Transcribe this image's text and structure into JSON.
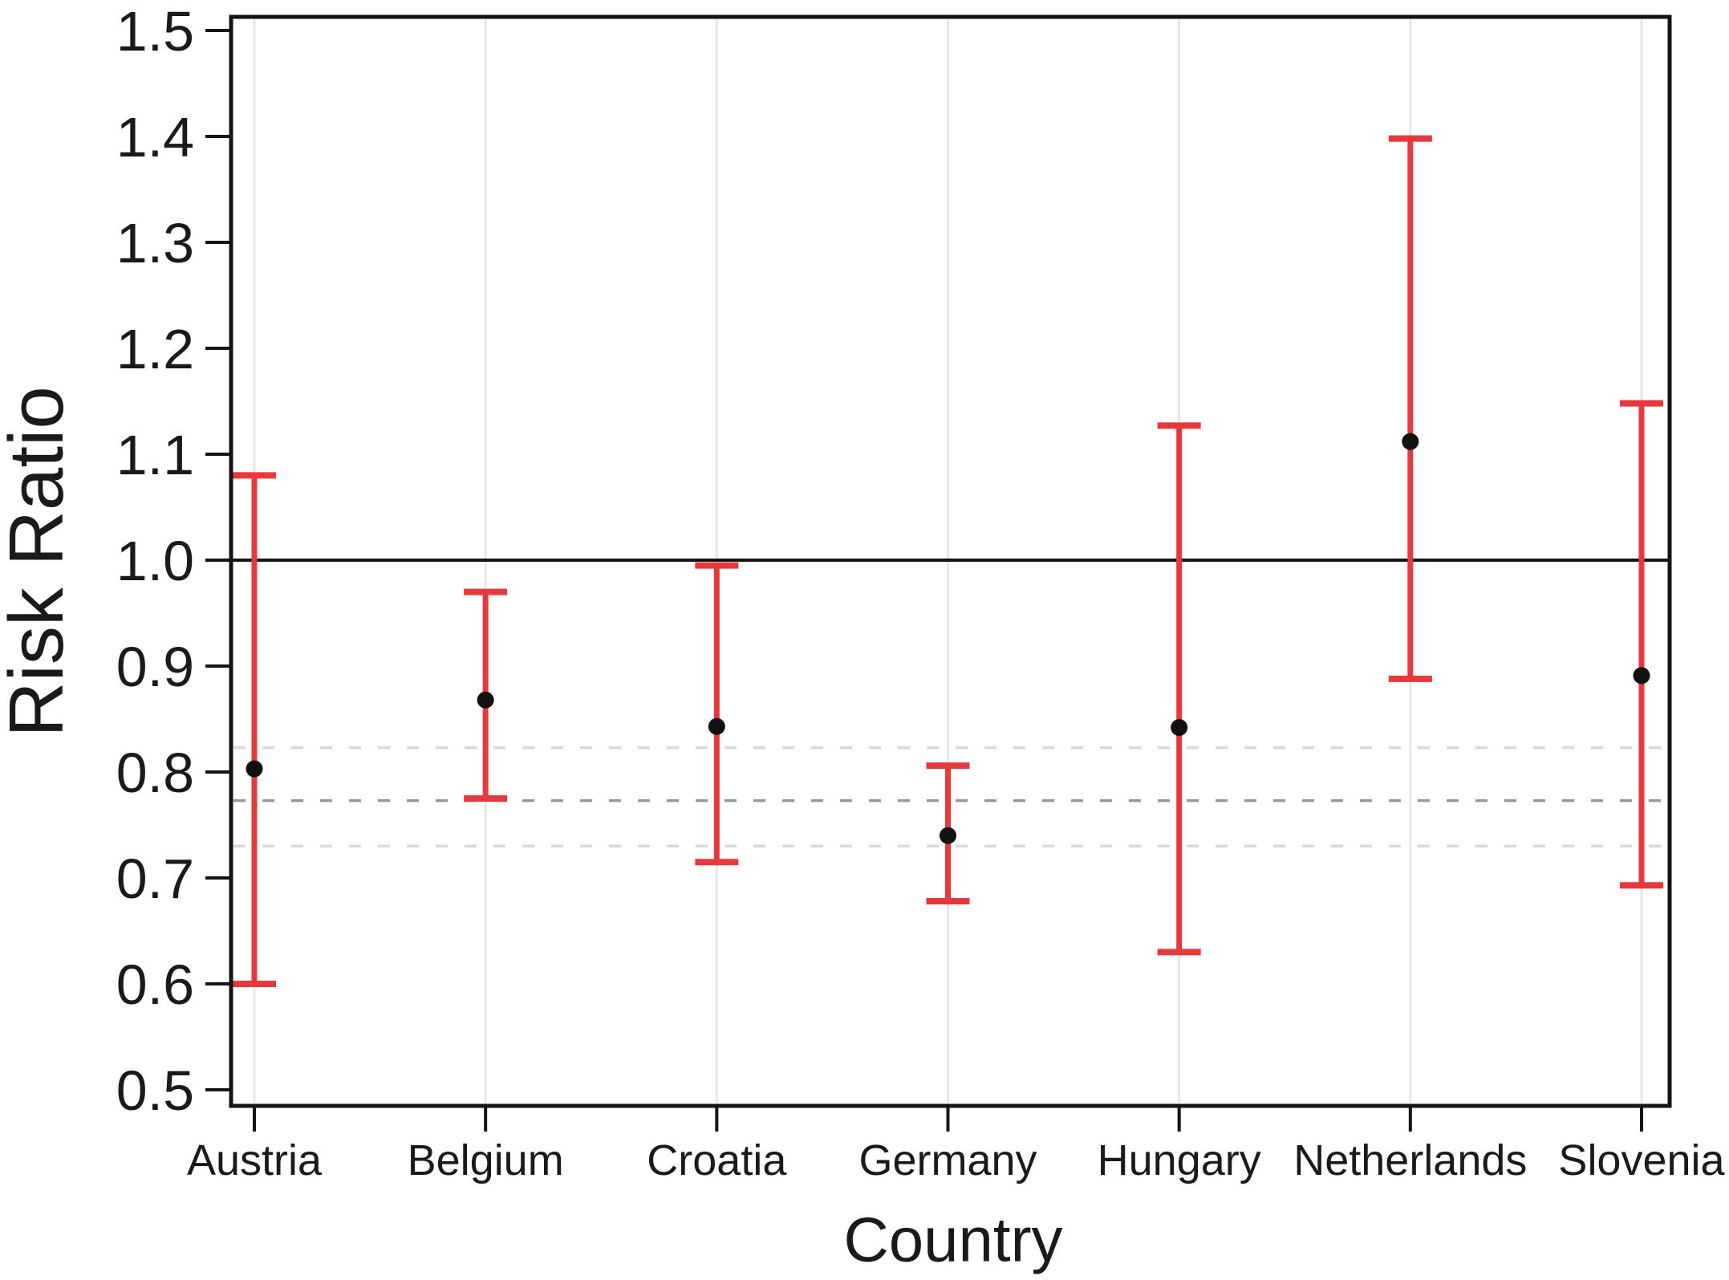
{
  "figure": {
    "background": "#ffffff"
  },
  "chart_data": {
    "type": "scatter",
    "subtype": "error-bar-forest-plot",
    "title": "",
    "xlabel": "Country",
    "ylabel": "Risk Ratio",
    "categories": [
      "Austria",
      "Belgium",
      "Croatia",
      "Germany",
      "Hungary",
      "Netherlands",
      "Slovenia"
    ],
    "series": [
      {
        "name": "Risk Ratio with confidence interval",
        "values": [
          0.803,
          0.868,
          0.843,
          0.74,
          0.842,
          1.112,
          0.891
        ],
        "ci_low": [
          0.6,
          0.775,
          0.715,
          0.678,
          0.63,
          0.888,
          0.693
        ],
        "ci_high": [
          1.08,
          0.97,
          0.995,
          0.806,
          1.127,
          1.398,
          1.148
        ]
      }
    ],
    "reference_lines": {
      "solid_null_line": {
        "value": 1.0,
        "color": "#141414"
      },
      "pooled_dashed_lines": [
        {
          "value": 0.823,
          "color": "#d8d7dc"
        },
        {
          "value": 0.773,
          "color": "#97969e"
        },
        {
          "value": 0.73,
          "color": "#d8d7dc"
        }
      ]
    },
    "ylim": [
      0.5,
      1.5
    ],
    "yticks": [
      1.5,
      1.4,
      1.3,
      1.2,
      1.1,
      1.0,
      0.9,
      0.8,
      0.7,
      0.6,
      0.5
    ],
    "ytick_decimals": 1,
    "grid": "vertical-only",
    "legend": "none",
    "colors": {
      "error_bar": "#e5393b",
      "marker": "#111111",
      "gridline": "#e7e7ea",
      "axis": "#141414",
      "tick_text": "#1a1a1a"
    }
  }
}
